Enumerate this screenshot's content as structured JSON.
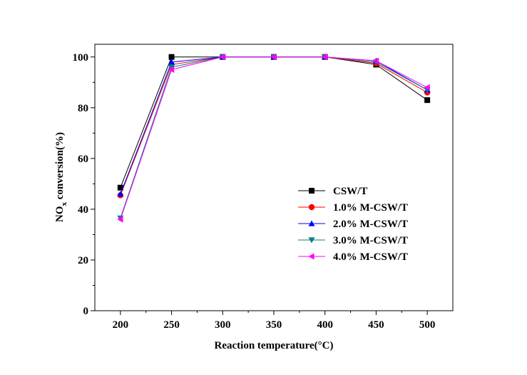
{
  "chart_data": {
    "type": "line",
    "title": "",
    "xlabel": "Reaction temperature(°C)",
    "ylabel": "NOₓ conversion(%)",
    "ylabel_main": "NO",
    "ylabel_sub": "x",
    "ylabel_tail": " conversion(%)",
    "xlim": [
      175,
      525
    ],
    "ylim": [
      0,
      105
    ],
    "x": [
      200,
      250,
      300,
      350,
      400,
      450,
      500
    ],
    "x_ticks": [
      "200",
      "250",
      "300",
      "350",
      "400",
      "450",
      "500"
    ],
    "y_ticks": [
      "0",
      "20",
      "40",
      "60",
      "80",
      "100"
    ],
    "grid": false,
    "legend_position": "center-right",
    "series": [
      {
        "name": "CSW/T",
        "color": "#000000",
        "marker": "square",
        "values": [
          48.5,
          100,
          100,
          100,
          100,
          97,
          83
        ]
      },
      {
        "name": "1.0% M-CSW/T",
        "color": "#ff0000",
        "marker": "circle",
        "values": [
          45.5,
          97,
          100,
          100,
          100,
          97.5,
          86
        ]
      },
      {
        "name": "2.0% M-CSW/T",
        "color": "#0000ff",
        "marker": "triangle-up",
        "values": [
          46,
          98,
          100,
          100,
          100,
          98.5,
          87
        ]
      },
      {
        "name": "3.0% M-CSW/T",
        "color": "#008080",
        "marker": "triangle-down",
        "values": [
          36.5,
          96,
          100,
          100,
          100,
          98,
          87
        ]
      },
      {
        "name": "4.0% M-CSW/T",
        "color": "#ff00ff",
        "marker": "triangle-left",
        "values": [
          36,
          95,
          100,
          100,
          100,
          98.5,
          88
        ]
      }
    ]
  }
}
